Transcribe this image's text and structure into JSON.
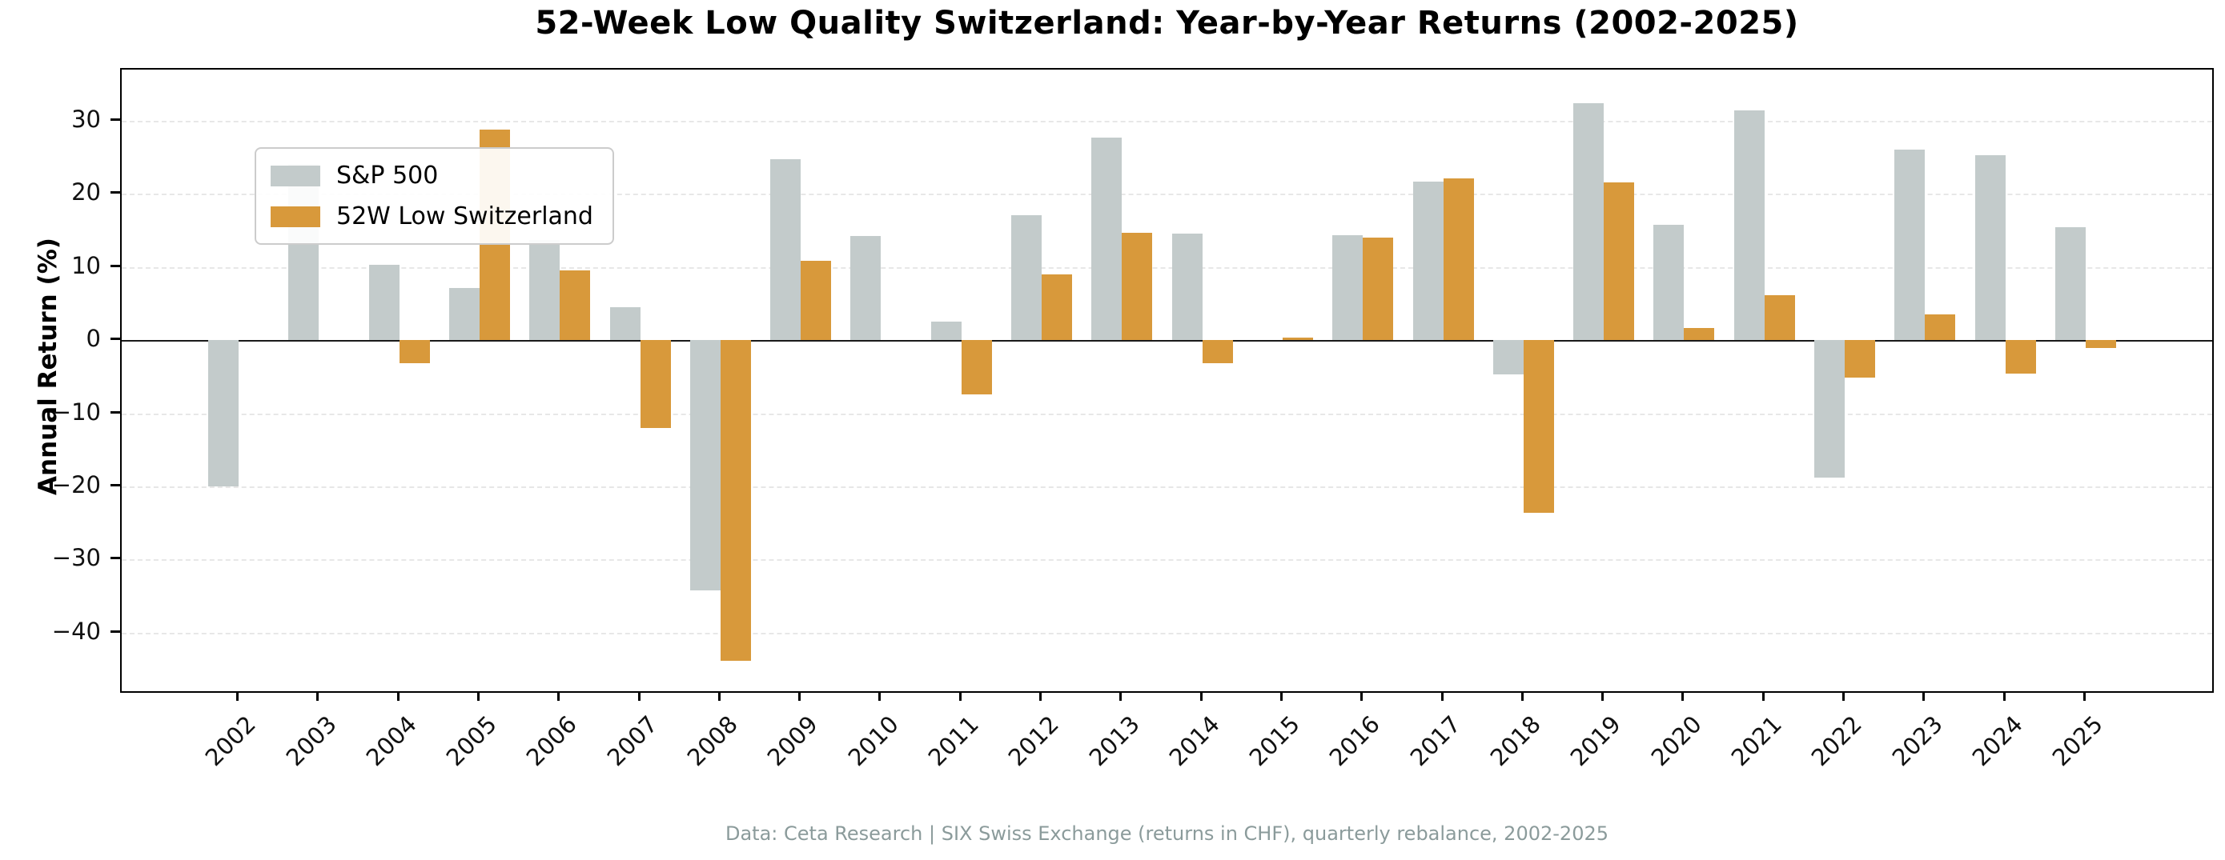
{
  "title": "52-Week Low Quality Switzerland: Year-by-Year Returns (2002-2025)",
  "ylabel": "Annual Return (%)",
  "footer": "Data: Ceta Research | SIX Swiss Exchange (returns in CHF), quarterly rebalance, 2002-2025",
  "legend": {
    "items": [
      {
        "label": "S&P 500",
        "color": "#c3cbcb"
      },
      {
        "label": "52W Low Switzerland",
        "color": "#d8993b"
      }
    ]
  },
  "colors": {
    "sp500": "#c3cbcb",
    "switzerland": "#d8993b",
    "gridline": "#e7e7e7",
    "zero_line": "#1a1a1a",
    "footer_text": "#8b9b9b"
  },
  "chart_data": {
    "type": "bar",
    "title": "52-Week Low Quality Switzerland: Year-by-Year Returns (2002-2025)",
    "xlabel": "",
    "ylabel": "Annual Return (%)",
    "ylim": [
      -48,
      37
    ],
    "grid": true,
    "legend_position": "upper left",
    "ytick_values": [
      30,
      20,
      10,
      0,
      -10,
      -20,
      -30,
      -40
    ],
    "ytick_labels": [
      "30",
      "20",
      "10",
      "0",
      "−10",
      "−20",
      "−30",
      "−40"
    ],
    "categories": [
      "2002",
      "2003",
      "2004",
      "2005",
      "2006",
      "2007",
      "2008",
      "2009",
      "2010",
      "2011",
      "2012",
      "2013",
      "2014",
      "2015",
      "2016",
      "2017",
      "2018",
      "2019",
      "2020",
      "2021",
      "2022",
      "2023",
      "2024",
      "2025"
    ],
    "series": [
      {
        "name": "S&P 500",
        "color": "#c3cbcb",
        "values": [
          -20.0,
          24.1,
          10.3,
          7.1,
          13.7,
          4.5,
          -34.2,
          24.8,
          14.3,
          2.5,
          17.1,
          27.7,
          14.6,
          0.0,
          14.4,
          21.7,
          -4.7,
          32.4,
          15.8,
          31.4,
          -18.8,
          26.1,
          25.3,
          15.5
        ]
      },
      {
        "name": "52W Low Switzerland",
        "color": "#d8993b",
        "values": [
          null,
          null,
          -3.2,
          28.8,
          9.5,
          -12.0,
          -43.8,
          10.8,
          null,
          -7.4,
          9.0,
          14.7,
          -3.1,
          0.3,
          14.0,
          22.1,
          -23.6,
          21.6,
          1.7,
          6.1,
          -5.1,
          3.5,
          -4.6,
          -1.1
        ]
      }
    ],
    "source_note": "Data: Ceta Research | SIX Swiss Exchange (returns in CHF), quarterly rebalance, 2002-2025"
  }
}
